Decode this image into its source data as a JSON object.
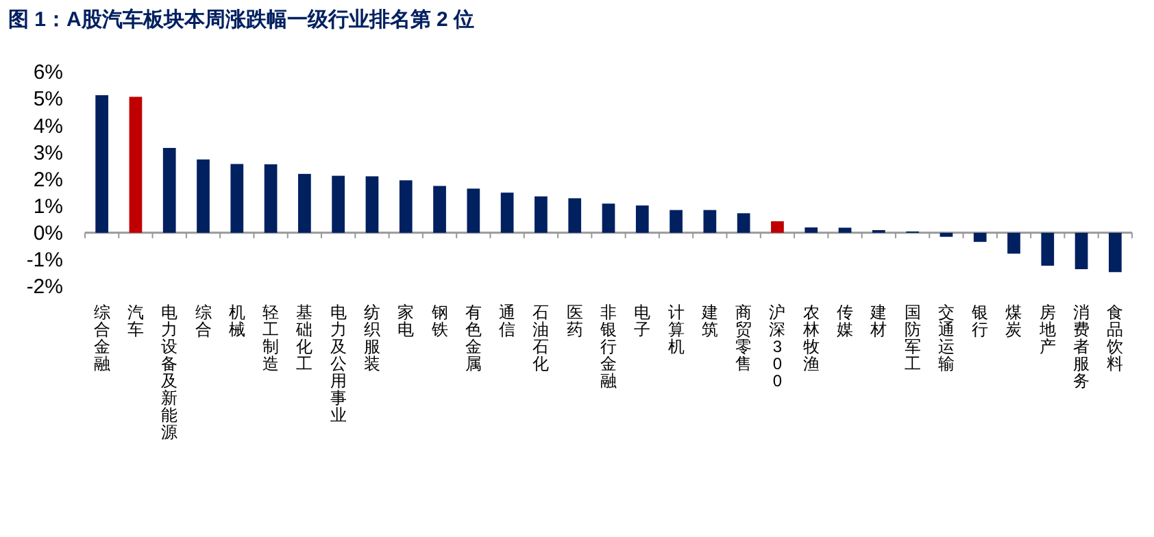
{
  "chart_data": {
    "type": "bar",
    "title": "图 1：A股汽车板块本周涨跌幅一级行业排名第 2 位",
    "categories": [
      "综合金融",
      "汽车",
      "电力设备及新能源",
      "综合",
      "机械",
      "轻工制造",
      "基础化工",
      "电力及公用事业",
      "纺织服装",
      "家电",
      "钢铁",
      "有色金属",
      "通信",
      "石油石化",
      "医药",
      "非银行金融",
      "电子",
      "计算机",
      "建筑",
      "商贸零售",
      "沪深300",
      "农林牧渔",
      "传媒",
      "建材",
      "国防军工",
      "交通运输",
      "银行",
      "煤炭",
      "房地产",
      "消费者服务",
      "食品饮料"
    ],
    "values": [
      5.14,
      5.08,
      3.17,
      2.74,
      2.57,
      2.56,
      2.2,
      2.13,
      2.11,
      1.96,
      1.75,
      1.65,
      1.5,
      1.36,
      1.29,
      1.09,
      1.02,
      0.85,
      0.85,
      0.73,
      0.43,
      0.2,
      0.19,
      0.1,
      0.05,
      -0.15,
      -0.34,
      -0.78,
      -1.23,
      -1.36,
      -1.47
    ],
    "colors": [
      "#002060",
      "#c00000",
      "#002060",
      "#002060",
      "#002060",
      "#002060",
      "#002060",
      "#002060",
      "#002060",
      "#002060",
      "#002060",
      "#002060",
      "#002060",
      "#002060",
      "#002060",
      "#002060",
      "#002060",
      "#002060",
      "#002060",
      "#002060",
      "#c00000",
      "#002060",
      "#002060",
      "#002060",
      "#002060",
      "#002060",
      "#002060",
      "#002060",
      "#002060",
      "#002060",
      "#002060"
    ],
    "ylim": [
      -2,
      6
    ],
    "yticks": [
      {
        "value": -2,
        "label": "-2%"
      },
      {
        "value": -1,
        "label": "-1%"
      },
      {
        "value": 0,
        "label": "0%"
      },
      {
        "value": 1,
        "label": "1%"
      },
      {
        "value": 2,
        "label": "2%"
      },
      {
        "value": 3,
        "label": "3%"
      },
      {
        "value": 4,
        "label": "4%"
      },
      {
        "value": 5,
        "label": "5%"
      },
      {
        "value": 6,
        "label": "6%"
      }
    ],
    "data_labels": false
  }
}
